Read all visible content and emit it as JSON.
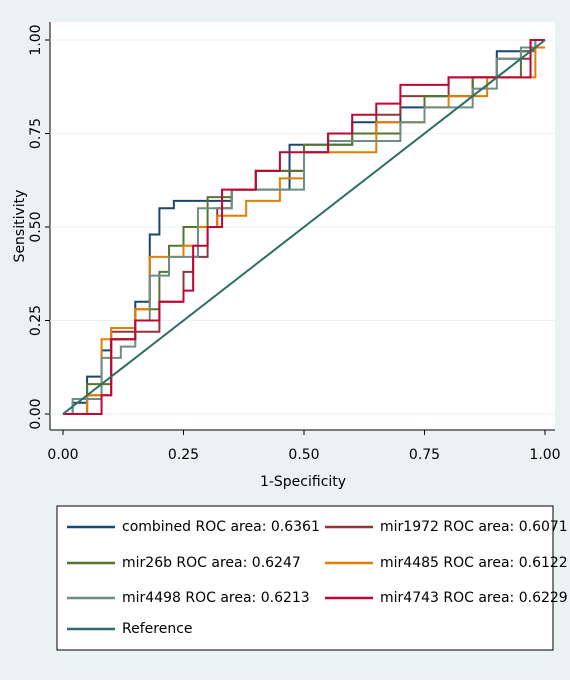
{
  "chart_data": {
    "type": "line",
    "x_label": "1-Specificity",
    "y_label": "Sensitivity",
    "xlim": [
      0,
      1
    ],
    "ylim": [
      0,
      1
    ],
    "xticks": [
      {
        "value": 0,
        "label": "0.00"
      },
      {
        "value": 0.25,
        "label": "0.25"
      },
      {
        "value": 0.5,
        "label": "0.50"
      },
      {
        "value": 0.75,
        "label": "0.75"
      },
      {
        "value": 1,
        "label": "1.00"
      }
    ],
    "yticks": [
      {
        "value": 0,
        "label": "0.00"
      },
      {
        "value": 0.25,
        "label": "0.25"
      },
      {
        "value": 0.5,
        "label": "0.50"
      },
      {
        "value": 0.75,
        "label": "0.75"
      },
      {
        "value": 1,
        "label": "1.00"
      }
    ],
    "grid": true,
    "series": [
      {
        "name": "combined ROC area: 0.6361",
        "color": "#1a476f",
        "x": [
          0,
          0.02,
          0.02,
          0.05,
          0.05,
          0.08,
          0.08,
          0.1,
          0.1,
          0.15,
          0.15,
          0.18,
          0.18,
          0.2,
          0.2,
          0.23,
          0.23,
          0.35,
          0.35,
          0.47,
          0.47,
          0.6,
          0.6,
          0.7,
          0.7,
          0.75,
          0.75,
          0.85,
          0.85,
          0.9,
          0.9,
          0.97,
          0.97,
          1
        ],
        "values": [
          0,
          0,
          0.03,
          0.03,
          0.1,
          0.1,
          0.17,
          0.17,
          0.2,
          0.2,
          0.3,
          0.3,
          0.48,
          0.48,
          0.55,
          0.55,
          0.57,
          0.57,
          0.6,
          0.6,
          0.72,
          0.72,
          0.78,
          0.78,
          0.82,
          0.82,
          0.85,
          0.85,
          0.9,
          0.9,
          0.97,
          0.97,
          1,
          1
        ]
      },
      {
        "name": "mir1972 ROC area: 0.6071",
        "color": "#90353b",
        "x": [
          0,
          0.05,
          0.05,
          0.1,
          0.1,
          0.2,
          0.2,
          0.25,
          0.25,
          0.27,
          0.27,
          0.3,
          0.3,
          0.32,
          0.32,
          0.35,
          0.35,
          0.4,
          0.4,
          0.5,
          0.5,
          0.55,
          0.55,
          0.65,
          0.65,
          0.7,
          0.7,
          0.8,
          0.8,
          0.9,
          0.9,
          0.97,
          0.97,
          1
        ],
        "values": [
          0,
          0,
          0.05,
          0.05,
          0.22,
          0.22,
          0.3,
          0.3,
          0.38,
          0.38,
          0.42,
          0.42,
          0.5,
          0.5,
          0.55,
          0.55,
          0.6,
          0.6,
          0.65,
          0.65,
          0.7,
          0.7,
          0.75,
          0.75,
          0.8,
          0.8,
          0.85,
          0.85,
          0.9,
          0.9,
          0.95,
          0.95,
          1,
          1
        ]
      },
      {
        "name": "mir26b ROC area: 0.6247",
        "color": "#55752f",
        "x": [
          0,
          0.05,
          0.05,
          0.1,
          0.1,
          0.15,
          0.15,
          0.2,
          0.2,
          0.22,
          0.22,
          0.25,
          0.25,
          0.3,
          0.3,
          0.35,
          0.35,
          0.4,
          0.4,
          0.5,
          0.5,
          0.6,
          0.6,
          0.7,
          0.7,
          0.75,
          0.75,
          0.85,
          0.85,
          0.95,
          0.95,
          0.98,
          0.98,
          1
        ],
        "values": [
          0,
          0,
          0.08,
          0.08,
          0.2,
          0.2,
          0.28,
          0.28,
          0.38,
          0.38,
          0.45,
          0.45,
          0.5,
          0.5,
          0.58,
          0.58,
          0.6,
          0.6,
          0.65,
          0.65,
          0.72,
          0.72,
          0.75,
          0.75,
          0.78,
          0.78,
          0.85,
          0.85,
          0.9,
          0.9,
          0.97,
          0.97,
          1,
          1
        ]
      },
      {
        "name": "mir4485 ROC area: 0.6122",
        "color": "#e37e00",
        "x": [
          0,
          0.05,
          0.05,
          0.08,
          0.08,
          0.1,
          0.1,
          0.15,
          0.15,
          0.18,
          0.18,
          0.25,
          0.25,
          0.28,
          0.28,
          0.32,
          0.32,
          0.38,
          0.38,
          0.45,
          0.45,
          0.5,
          0.5,
          0.65,
          0.65,
          0.75,
          0.75,
          0.8,
          0.8,
          0.88,
          0.88,
          0.98,
          0.98,
          1
        ],
        "values": [
          0,
          0,
          0.05,
          0.05,
          0.2,
          0.2,
          0.23,
          0.23,
          0.28,
          0.28,
          0.42,
          0.42,
          0.45,
          0.45,
          0.5,
          0.5,
          0.53,
          0.53,
          0.57,
          0.57,
          0.63,
          0.63,
          0.7,
          0.7,
          0.78,
          0.78,
          0.82,
          0.82,
          0.85,
          0.85,
          0.9,
          0.9,
          0.98,
          0.98
        ]
      },
      {
        "name": "mir4498 ROC area: 0.6213",
        "color": "#6e8e84",
        "x": [
          0,
          0.02,
          0.02,
          0.08,
          0.08,
          0.12,
          0.12,
          0.15,
          0.15,
          0.18,
          0.18,
          0.22,
          0.22,
          0.28,
          0.28,
          0.35,
          0.35,
          0.5,
          0.5,
          0.55,
          0.55,
          0.7,
          0.7,
          0.75,
          0.75,
          0.85,
          0.85,
          0.9,
          0.9,
          0.95,
          0.95,
          0.98,
          0.98,
          1
        ],
        "values": [
          0,
          0,
          0.04,
          0.04,
          0.15,
          0.15,
          0.18,
          0.18,
          0.25,
          0.25,
          0.37,
          0.37,
          0.42,
          0.42,
          0.55,
          0.55,
          0.6,
          0.6,
          0.7,
          0.7,
          0.73,
          0.73,
          0.78,
          0.78,
          0.82,
          0.82,
          0.87,
          0.87,
          0.95,
          0.95,
          0.98,
          0.98,
          1,
          1
        ]
      },
      {
        "name": "mir4743 ROC area: 0.6229",
        "color": "#c10534",
        "x": [
          0,
          0.08,
          0.08,
          0.1,
          0.1,
          0.15,
          0.15,
          0.2,
          0.2,
          0.25,
          0.25,
          0.27,
          0.27,
          0.3,
          0.3,
          0.33,
          0.33,
          0.4,
          0.4,
          0.45,
          0.45,
          0.55,
          0.55,
          0.6,
          0.6,
          0.65,
          0.65,
          0.7,
          0.7,
          0.8,
          0.8,
          0.97,
          0.97,
          1
        ],
        "values": [
          0,
          0,
          0.05,
          0.05,
          0.2,
          0.2,
          0.25,
          0.25,
          0.3,
          0.3,
          0.33,
          0.33,
          0.45,
          0.45,
          0.5,
          0.5,
          0.6,
          0.6,
          0.65,
          0.65,
          0.7,
          0.7,
          0.75,
          0.75,
          0.8,
          0.8,
          0.83,
          0.83,
          0.88,
          0.88,
          0.9,
          0.9,
          1,
          1
        ]
      },
      {
        "name": "Reference",
        "color": "#2d6d66",
        "x": [
          0,
          1
        ],
        "values": [
          0,
          1
        ]
      }
    ]
  }
}
